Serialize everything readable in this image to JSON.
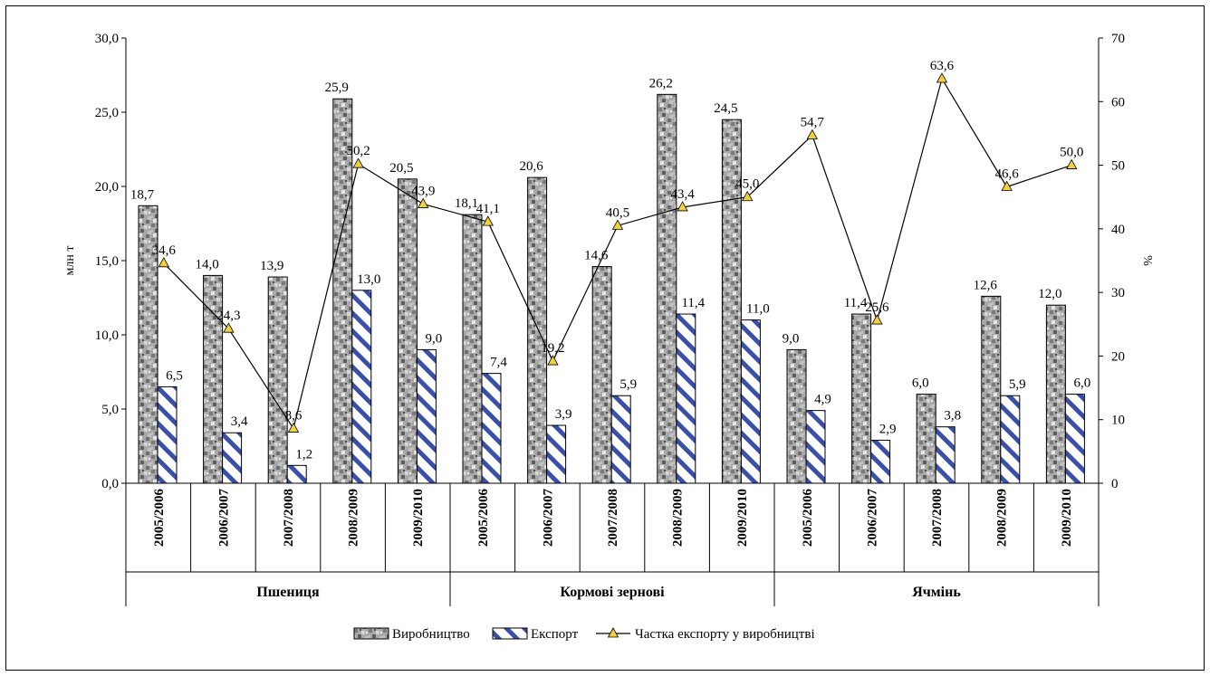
{
  "chart_data": {
    "type": "bar",
    "y_left": {
      "label": "млн т",
      "min": 0,
      "max": 30,
      "step": 5,
      "ticks": [
        "0,0",
        "5,0",
        "10,0",
        "15,0",
        "20,0",
        "25,0",
        "30,0"
      ]
    },
    "y_right": {
      "label": "%",
      "min": 0,
      "max": 70,
      "step": 10,
      "ticks": [
        "0",
        "10",
        "20",
        "30",
        "40",
        "50",
        "60",
        "70"
      ]
    },
    "groups": [
      "Пшениця",
      "Кормові зернові",
      "Ячмінь"
    ],
    "categories": [
      "2005/2006",
      "2006/2007",
      "2007/2008",
      "2008/2009",
      "2009/2010",
      "2005/2006",
      "2006/2007",
      "2007/2008",
      "2008/2009",
      "2009/2010",
      "2005/2006",
      "2006/2007",
      "2007/2008",
      "2008/2009",
      "2009/2010"
    ],
    "series": [
      {
        "name": "Виробництво",
        "type": "bar",
        "axis": "left",
        "values": [
          18.7,
          14.0,
          13.9,
          25.9,
          20.5,
          18.1,
          20.6,
          14.6,
          26.2,
          24.5,
          9.0,
          11.4,
          6.0,
          12.6,
          12.0
        ],
        "labels": [
          "18,7",
          "14,0",
          "13,9",
          "25,9",
          "20,5",
          "18,1",
          "20,6",
          "14,6",
          "26,2",
          "24,5",
          "9,0",
          "11,4",
          "6,0",
          "12,6",
          "12,0"
        ]
      },
      {
        "name": "Експорт",
        "type": "bar",
        "axis": "left",
        "values": [
          6.5,
          3.4,
          1.2,
          13.0,
          9.0,
          7.4,
          3.9,
          5.9,
          11.4,
          11.0,
          4.9,
          2.9,
          3.8,
          5.9,
          6.0
        ],
        "labels": [
          "6,5",
          "3,4",
          "1,2",
          "13,0",
          "9,0",
          "7,4",
          "3,9",
          "5,9",
          "11,4",
          "11,0",
          "4,9",
          "2,9",
          "3,8",
          "5,9",
          "6,0"
        ]
      },
      {
        "name": "Частка експорту у виробництві",
        "type": "line",
        "axis": "right",
        "values": [
          34.6,
          24.3,
          8.6,
          50.2,
          43.9,
          41.1,
          19.2,
          40.5,
          43.4,
          45.0,
          54.7,
          25.6,
          63.6,
          46.6,
          50.0
        ],
        "labels": [
          "34,6",
          "24,3",
          "8,6",
          "50,2",
          "43,9",
          "41,1",
          "19,2",
          "40,5",
          "43,4",
          "45,0",
          "54,7",
          "25,6",
          "63,6",
          "46,6",
          "50,0"
        ]
      }
    ],
    "legend_position": "bottom",
    "grid": false,
    "colors": {
      "export_stripe": "#3a4fa8",
      "marker_fill": "#f2d23a",
      "production_base": "#a8a8a8"
    }
  }
}
